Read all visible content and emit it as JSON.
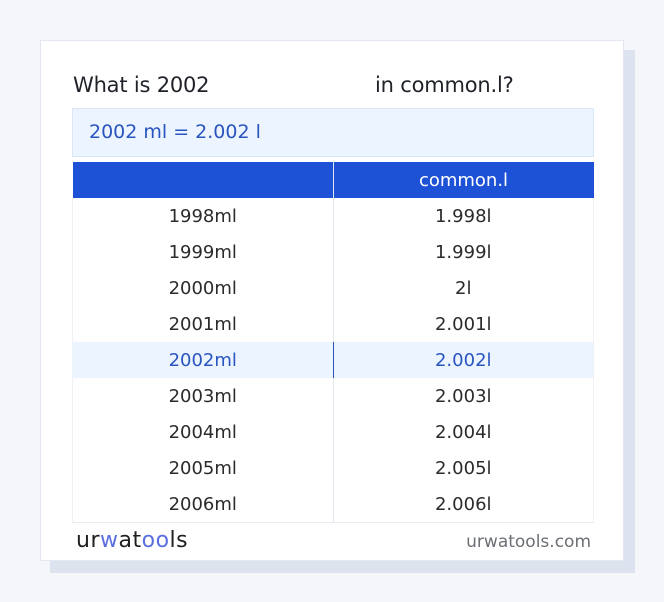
{
  "question": {
    "prefix": "What is 2002",
    "suffix": "in common.l?"
  },
  "answer": "2002 ml = 2.002 l",
  "table": {
    "headers": [
      "",
      "common.l"
    ],
    "rows": [
      {
        "ml": "1998ml",
        "l": "1.998l"
      },
      {
        "ml": "1999ml",
        "l": "1.999l"
      },
      {
        "ml": "2000ml",
        "l": "2l"
      },
      {
        "ml": "2001ml",
        "l": "2.001l"
      },
      {
        "ml": "2002ml",
        "l": "2.002l"
      },
      {
        "ml": "2003ml",
        "l": "2.003l"
      },
      {
        "ml": "2004ml",
        "l": "2.004l"
      },
      {
        "ml": "2005ml",
        "l": "2.005l"
      },
      {
        "ml": "2006ml",
        "l": "2.006l"
      }
    ],
    "highlighted_row": 4
  },
  "footer": {
    "logo": {
      "p1": "ur",
      "p2": "w",
      "p3": "at",
      "p4": "oo",
      "p5": "ls"
    },
    "site": "urwatools.com"
  },
  "colors": {
    "header_bg": "#1e52d6",
    "highlight_bg": "#ebf4ff",
    "highlight_text": "#2a55c0"
  }
}
